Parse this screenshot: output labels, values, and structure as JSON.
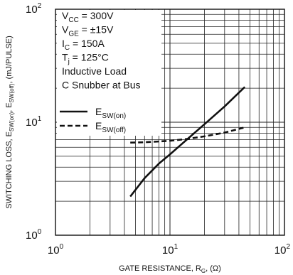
{
  "chart_data": {
    "type": "line",
    "x_scale": "log",
    "y_scale": "log",
    "xlim": [
      1,
      100
    ],
    "ylim": [
      1,
      100
    ],
    "grid": true,
    "x_ticks": [
      {
        "value": 1,
        "base": "10",
        "exp": "0"
      },
      {
        "value": 10,
        "base": "10",
        "exp": "1"
      },
      {
        "value": 100,
        "base": "10",
        "exp": "2"
      }
    ],
    "y_ticks": [
      {
        "value": 1,
        "base": "10",
        "exp": "0"
      },
      {
        "value": 10,
        "base": "10",
        "exp": "1"
      },
      {
        "value": 100,
        "base": "10",
        "exp": "2"
      }
    ],
    "xlabel": {
      "main": "GATE RESISTANCE, R",
      "sub": "G",
      "tail": ", (Ω)"
    },
    "ylabel": {
      "part1": "SWITCHING LOSS, E",
      "sub1": "SW(on)",
      "part2": ", E",
      "sub2": "SW(off)",
      "part3": ", (mJ/PULSE)"
    },
    "conditions": [
      {
        "main": "V",
        "sub": "CC",
        "tail": " = 300V"
      },
      {
        "main": "V",
        "sub": "GE",
        "tail": " = ±15V"
      },
      {
        "main": "I",
        "sub": "C",
        "tail": " = 150A"
      },
      {
        "main": "T",
        "sub": "j",
        "tail": " = 125°C"
      },
      {
        "main": "Inductive Load",
        "sub": "",
        "tail": ""
      },
      {
        "main": "C Snubber at Bus",
        "sub": "",
        "tail": ""
      }
    ],
    "legend_position": "top-left",
    "series": [
      {
        "name": "E",
        "name_sub": "SW(on)",
        "style": "solid",
        "x": [
          4.5,
          6,
          8,
          10,
          14,
          20,
          30,
          45
        ],
        "y": [
          2.2,
          3.2,
          4.3,
          5.2,
          7.0,
          9.6,
          13.8,
          20.5
        ]
      },
      {
        "name": "E",
        "name_sub": "SW(off)",
        "style": "dashed",
        "x": [
          4.5,
          6,
          8,
          10,
          14,
          20,
          30,
          45
        ],
        "y": [
          6.6,
          6.65,
          6.75,
          6.85,
          7.1,
          7.5,
          8.1,
          9.0
        ]
      }
    ]
  }
}
